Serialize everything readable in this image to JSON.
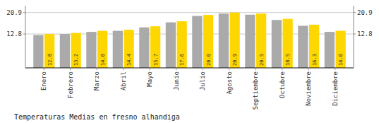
{
  "chart_data": {
    "type": "bar",
    "title": "Temperaturas Medias en fresno alhandiga",
    "categories": [
      "Enero",
      "Febrero",
      "Marzo",
      "Abril",
      "Mayo",
      "Junio",
      "Julio",
      "Agosto",
      "Septiembre",
      "Octubre",
      "Noviembre",
      "Diciembre"
    ],
    "series": [
      {
        "color": "#AAAAAA",
        "values": [
          12.4,
          12.8,
          13.6,
          14.0,
          15.3,
          17.2,
          19.6,
          20.5,
          20.1,
          18.1,
          15.9,
          13.6
        ]
      },
      {
        "color": "#FFD700",
        "values": [
          12.8,
          13.2,
          14.0,
          14.4,
          15.7,
          17.6,
          20.0,
          20.9,
          20.5,
          18.5,
          16.3,
          14.0
        ],
        "data_labels": true,
        "value_labels": [
          "12.8",
          "13.2",
          "14.0",
          "14.4",
          "15.7",
          "17.6",
          "20.0",
          "20.9",
          "20.5",
          "18.5",
          "16.3",
          "14.0"
        ]
      }
    ],
    "ylim": [
      0,
      23.5
    ],
    "yticks": [
      12.8,
      20.9
    ],
    "y2lim": [
      0,
      23.5
    ],
    "y2ticks": [
      12.8,
      20.9
    ],
    "grid": true
  }
}
